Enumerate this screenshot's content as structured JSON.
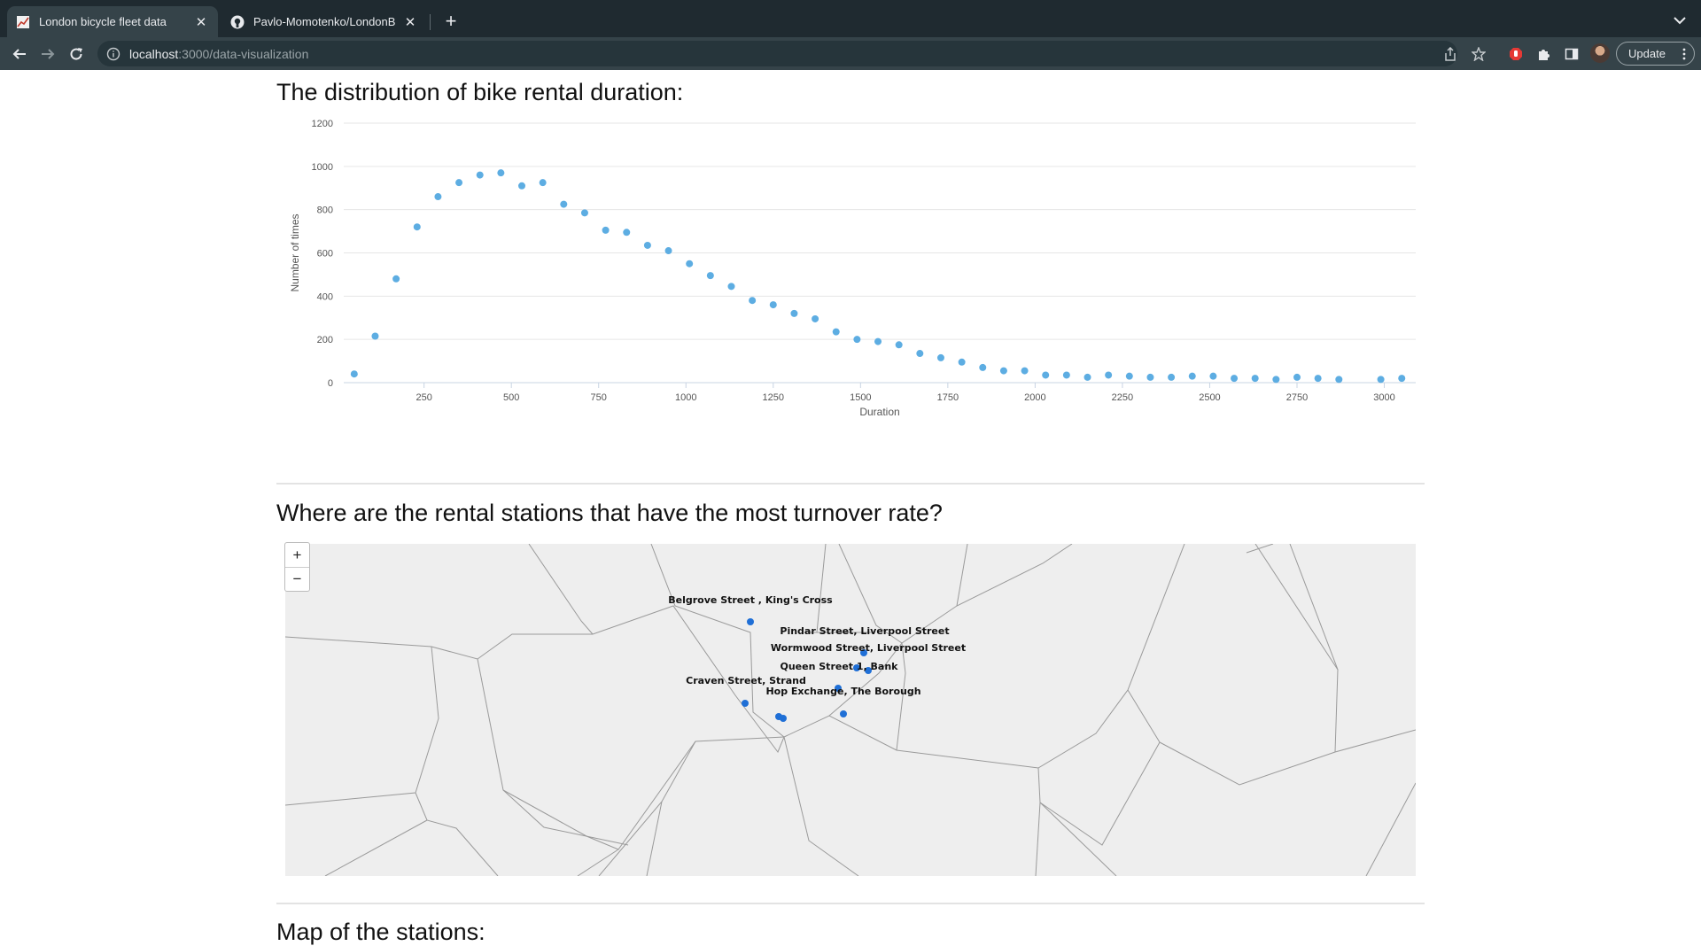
{
  "browser": {
    "tabs": [
      {
        "title": "London bicycle fleet data",
        "active": true
      },
      {
        "title": "Pavlo-Momotenko/LondonBicy",
        "active": false
      }
    ],
    "url_host": "localhost",
    "url_path": ":3000/data-visualization",
    "update_label": "Update"
  },
  "sections": {
    "duration_title": "The distribution of bike rental duration:",
    "stations_title": "Where are the rental stations that have the most turnover rate?",
    "map_title": "Map of the stations:"
  },
  "map": {
    "zoom_in": "+",
    "zoom_out": "−",
    "stations": [
      {
        "name": "Belgrove Street , King's Cross"
      },
      {
        "name": "Pindar Street, Liverpool Street"
      },
      {
        "name": "Wormwood Street, Liverpool Street"
      },
      {
        "name": "Queen Street 1, Bank"
      },
      {
        "name": "Craven Street, Strand"
      },
      {
        "name": "Hop Exchange, The Borough"
      }
    ]
  },
  "colors": {
    "point": "#5dade2",
    "station": "#1f6fd6"
  },
  "chart_data": {
    "type": "scatter",
    "title": "",
    "xlabel": "Duration",
    "ylabel": "Number of times",
    "xlim": [
      20,
      3090
    ],
    "ylim": [
      0,
      1200
    ],
    "xticks": [
      250,
      500,
      750,
      1000,
      1250,
      1500,
      1750,
      2000,
      2250,
      2500,
      2750,
      3000
    ],
    "yticks": [
      0,
      200,
      400,
      600,
      800,
      1000,
      1200
    ],
    "grid": true,
    "x": [
      50,
      110,
      170,
      230,
      290,
      350,
      410,
      470,
      530,
      590,
      650,
      710,
      770,
      830,
      890,
      950,
      1010,
      1070,
      1130,
      1190,
      1250,
      1310,
      1370,
      1430,
      1490,
      1550,
      1610,
      1670,
      1730,
      1790,
      1850,
      1910,
      1970,
      2030,
      2090,
      2150,
      2210,
      2270,
      2330,
      2390,
      2450,
      2510,
      2570,
      2630,
      2690,
      2750,
      2810,
      2870,
      2990,
      3050
    ],
    "y": [
      40,
      215,
      480,
      720,
      860,
      925,
      960,
      970,
      910,
      925,
      825,
      785,
      705,
      695,
      635,
      610,
      550,
      495,
      445,
      380,
      360,
      320,
      295,
      235,
      200,
      190,
      175,
      135,
      115,
      95,
      70,
      55,
      55,
      35,
      35,
      25,
      35,
      30,
      25,
      25,
      30,
      30,
      20,
      20,
      15,
      25,
      20,
      15,
      15,
      20
    ]
  }
}
